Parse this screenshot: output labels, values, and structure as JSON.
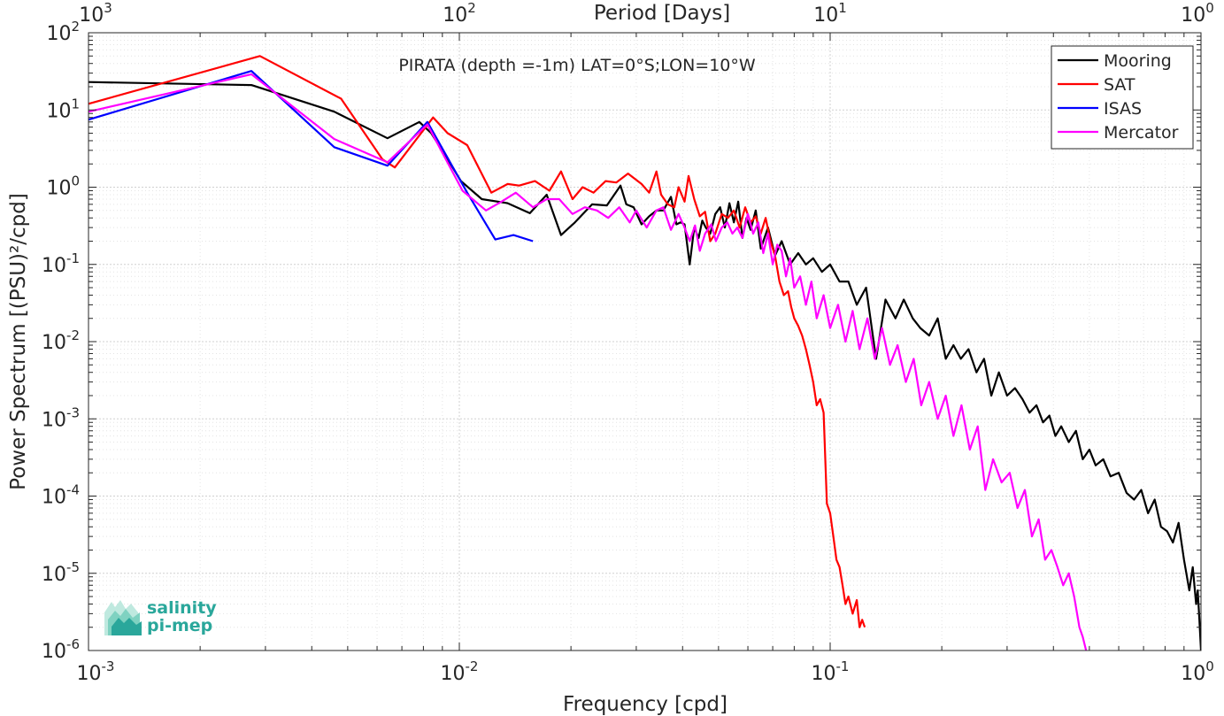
{
  "chart_data": {
    "type": "line",
    "title": "PIRATA (depth =-1m) LAT=0°S;LON=10°W",
    "xlabel": "Frequency [cpd]",
    "ylabel": "Power Spectrum [(PSU)²/cpd]",
    "x2label": "Period [Days]",
    "xscale": "log",
    "yscale": "log",
    "xlim": [
      0.001,
      1
    ],
    "ylim": [
      1e-06,
      100
    ],
    "grid": true,
    "legend_position": "top-right",
    "x_ticks": [
      {
        "mantissa": "10",
        "exp": "-3"
      },
      {
        "mantissa": "10",
        "exp": "-2"
      },
      {
        "mantissa": "10",
        "exp": "-1"
      },
      {
        "mantissa": "10",
        "exp": "0"
      }
    ],
    "x2_ticks": [
      {
        "mantissa": "10",
        "exp": "3"
      },
      {
        "mantissa": "10",
        "exp": "2"
      },
      {
        "mantissa": "10",
        "exp": "1"
      },
      {
        "mantissa": "10",
        "exp": "0"
      }
    ],
    "y_ticks": [
      {
        "mantissa": "10",
        "exp": "-6"
      },
      {
        "mantissa": "10",
        "exp": "-5"
      },
      {
        "mantissa": "10",
        "exp": "-4"
      },
      {
        "mantissa": "10",
        "exp": "-3"
      },
      {
        "mantissa": "10",
        "exp": "-2"
      },
      {
        "mantissa": "10",
        "exp": "-1"
      },
      {
        "mantissa": "10",
        "exp": "0"
      },
      {
        "mantissa": "10",
        "exp": "1"
      },
      {
        "mantissa": "10",
        "exp": "2"
      }
    ],
    "series": [
      {
        "name": "Mooring",
        "color": "#000000",
        "x": [
          0.001,
          0.00275,
          0.0046,
          0.0064,
          0.0078,
          0.0084,
          0.0092,
          0.0101,
          0.0115,
          0.0135,
          0.0155,
          0.0172,
          0.0188,
          0.0205,
          0.0228,
          0.025,
          0.0272,
          0.0282,
          0.0295,
          0.031,
          0.0325,
          0.034,
          0.0355,
          0.0372,
          0.0385,
          0.0395,
          0.0405,
          0.0418,
          0.043,
          0.0442,
          0.0452,
          0.0462,
          0.0475,
          0.049,
          0.0505,
          0.052,
          0.0535,
          0.055,
          0.0565,
          0.058,
          0.0595,
          0.061,
          0.063,
          0.065,
          0.068,
          0.071,
          0.074,
          0.078,
          0.082,
          0.086,
          0.09,
          0.095,
          0.1,
          0.106,
          0.112,
          0.118,
          0.125,
          0.133,
          0.141,
          0.15,
          0.158,
          0.167,
          0.175,
          0.185,
          0.195,
          0.205,
          0.215,
          0.225,
          0.236,
          0.248,
          0.26,
          0.272,
          0.285,
          0.3,
          0.315,
          0.33,
          0.345,
          0.36,
          0.375,
          0.39,
          0.405,
          0.42,
          0.44,
          0.46,
          0.48,
          0.5,
          0.52,
          0.545,
          0.57,
          0.6,
          0.63,
          0.66,
          0.69,
          0.72,
          0.75,
          0.78,
          0.81,
          0.84,
          0.87,
          0.9,
          0.93,
          0.95,
          0.97,
          0.98,
          0.99,
          1.0
        ],
        "y": [
          23,
          21,
          9.5,
          4.3,
          7.0,
          5.0,
          2.5,
          1.2,
          0.7,
          0.62,
          0.46,
          0.8,
          0.24,
          0.35,
          0.6,
          0.58,
          1.05,
          0.6,
          0.55,
          0.33,
          0.42,
          0.5,
          0.5,
          0.75,
          0.33,
          0.35,
          0.33,
          0.1,
          0.3,
          0.22,
          0.37,
          0.3,
          0.25,
          0.45,
          0.55,
          0.3,
          0.62,
          0.35,
          0.65,
          0.22,
          0.4,
          0.28,
          0.5,
          0.16,
          0.3,
          0.13,
          0.2,
          0.1,
          0.14,
          0.1,
          0.12,
          0.08,
          0.1,
          0.06,
          0.06,
          0.03,
          0.05,
          0.006,
          0.035,
          0.02,
          0.035,
          0.02,
          0.015,
          0.012,
          0.02,
          0.006,
          0.009,
          0.006,
          0.008,
          0.004,
          0.006,
          0.002,
          0.004,
          0.002,
          0.0025,
          0.0018,
          0.0012,
          0.0015,
          0.0009,
          0.0011,
          0.0006,
          0.0008,
          0.0005,
          0.0007,
          0.0003,
          0.0004,
          0.00025,
          0.0003,
          0.00018,
          0.0002,
          0.00011,
          9e-05,
          0.00012,
          6e-05,
          9e-05,
          4e-05,
          3.5e-05,
          2.5e-05,
          4.5e-05,
          1.5e-05,
          6e-06,
          1.2e-05,
          4e-06,
          6e-06,
          2.5e-06,
          1e-06
        ]
      },
      {
        "name": "SAT",
        "color": "#ff0000",
        "x": [
          0.001,
          0.0029,
          0.0048,
          0.0062,
          0.0067,
          0.0085,
          0.0093,
          0.0105,
          0.0122,
          0.0135,
          0.0145,
          0.016,
          0.0175,
          0.0188,
          0.0202,
          0.0215,
          0.023,
          0.0248,
          0.0265,
          0.0285,
          0.031,
          0.0325,
          0.034,
          0.035,
          0.0365,
          0.038,
          0.039,
          0.0405,
          0.0415,
          0.043,
          0.0445,
          0.046,
          0.0475,
          0.049,
          0.051,
          0.053,
          0.055,
          0.057,
          0.059,
          0.061,
          0.063,
          0.065,
          0.067,
          0.069,
          0.071,
          0.073,
          0.075,
          0.077,
          0.0785,
          0.08,
          0.082,
          0.084,
          0.086,
          0.088,
          0.09,
          0.092,
          0.094,
          0.096,
          0.098,
          0.1,
          0.102,
          0.104,
          0.106,
          0.108,
          0.11,
          0.112,
          0.115,
          0.118,
          0.12,
          0.122,
          0.124
        ],
        "y": [
          12,
          50,
          14,
          2.3,
          1.8,
          8.0,
          5.0,
          3.5,
          0.85,
          1.1,
          1.05,
          1.2,
          0.9,
          1.6,
          0.7,
          1.0,
          0.85,
          1.2,
          1.15,
          1.5,
          1.1,
          0.85,
          1.6,
          0.8,
          0.6,
          0.55,
          1.0,
          0.65,
          1.4,
          0.7,
          0.42,
          0.48,
          0.2,
          0.25,
          0.45,
          0.4,
          0.5,
          0.3,
          0.55,
          0.35,
          0.42,
          0.25,
          0.4,
          0.2,
          0.13,
          0.06,
          0.04,
          0.045,
          0.028,
          0.02,
          0.016,
          0.012,
          0.008,
          0.005,
          0.003,
          0.0015,
          0.0018,
          0.0012,
          8e-05,
          6e-05,
          3e-05,
          1.5e-05,
          1.2e-05,
          7e-06,
          4e-06,
          5e-06,
          3e-06,
          4.5e-06,
          2e-06,
          2.5e-06,
          2e-06
        ]
      },
      {
        "name": "ISAS",
        "color": "#0000ff",
        "x": [
          0.001,
          0.00275,
          0.0046,
          0.0064,
          0.0082,
          0.0105,
          0.0125,
          0.014,
          0.0158
        ],
        "y": [
          7.5,
          32,
          3.3,
          1.9,
          7.0,
          0.85,
          0.21,
          0.24,
          0.2
        ]
      },
      {
        "name": "Mercator",
        "color": "#ff00ff",
        "x": [
          0.001,
          0.00275,
          0.0046,
          0.0064,
          0.0082,
          0.0102,
          0.0118,
          0.013,
          0.0142,
          0.0158,
          0.0172,
          0.0186,
          0.0202,
          0.0218,
          0.0235,
          0.0252,
          0.027,
          0.0288,
          0.03,
          0.032,
          0.034,
          0.0355,
          0.0372,
          0.039,
          0.0405,
          0.0418,
          0.0432,
          0.0445,
          0.046,
          0.0478,
          0.0492,
          0.051,
          0.0528,
          0.0545,
          0.0562,
          0.058,
          0.06,
          0.062,
          0.064,
          0.066,
          0.068,
          0.07,
          0.072,
          0.074,
          0.076,
          0.078,
          0.08,
          0.083,
          0.086,
          0.089,
          0.092,
          0.096,
          0.1,
          0.105,
          0.11,
          0.115,
          0.12,
          0.126,
          0.132,
          0.138,
          0.145,
          0.152,
          0.16,
          0.168,
          0.176,
          0.185,
          0.195,
          0.205,
          0.215,
          0.226,
          0.238,
          0.25,
          0.262,
          0.275,
          0.29,
          0.305,
          0.32,
          0.335,
          0.35,
          0.365,
          0.38,
          0.395,
          0.41,
          0.425,
          0.44,
          0.455,
          0.47,
          0.48,
          0.49
        ],
        "y": [
          9.5,
          29,
          4.2,
          2.1,
          6.5,
          0.9,
          0.5,
          0.65,
          0.85,
          0.55,
          0.7,
          0.7,
          0.45,
          0.55,
          0.5,
          0.4,
          0.55,
          0.35,
          0.5,
          0.3,
          0.5,
          0.55,
          0.28,
          0.45,
          0.3,
          0.2,
          0.32,
          0.15,
          0.25,
          0.33,
          0.2,
          0.3,
          0.35,
          0.25,
          0.3,
          0.22,
          0.45,
          0.25,
          0.35,
          0.14,
          0.25,
          0.1,
          0.18,
          0.15,
          0.07,
          0.12,
          0.05,
          0.07,
          0.03,
          0.06,
          0.02,
          0.04,
          0.015,
          0.03,
          0.01,
          0.025,
          0.008,
          0.02,
          0.006,
          0.015,
          0.005,
          0.009,
          0.003,
          0.006,
          0.0015,
          0.003,
          0.001,
          0.002,
          0.0006,
          0.0015,
          0.0004,
          0.0008,
          0.00012,
          0.0003,
          0.00015,
          0.0002,
          7e-05,
          0.00012,
          3e-05,
          5e-05,
          1.5e-05,
          2e-05,
          1.2e-05,
          7e-06,
          1e-05,
          5e-06,
          2e-06,
          1.5e-06,
          1e-06
        ]
      }
    ]
  },
  "logo": {
    "line1": "salinity",
    "line2": "pi-mep",
    "color": "#2aa79b"
  }
}
